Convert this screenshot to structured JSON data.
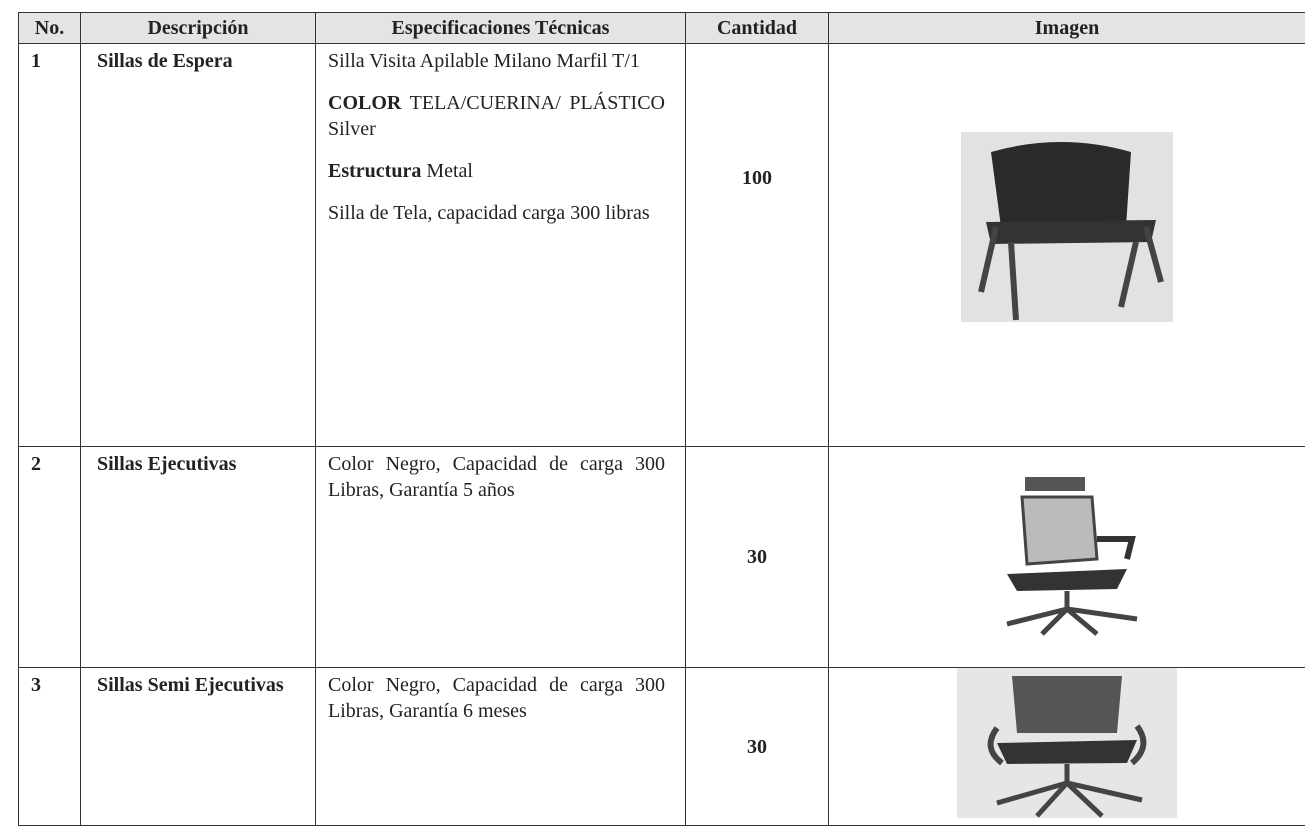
{
  "table": {
    "headers": [
      "No.",
      "Descripción",
      "Especificaciones Técnicas",
      "Cantidad",
      "Imagen"
    ],
    "rows": [
      {
        "no": 1,
        "description": "Sillas de Espera",
        "specs": [
          "Silla Visita Apilable Milano Marfil T/1",
          {
            "label": "COLOR",
            "text": "TELA/CUERINA/ PLÁSTICO Silver"
          },
          {
            "label": "Estructura",
            "text": "Metal"
          },
          "Silla de Tela, capacidad carga 300 libras"
        ],
        "quantity": 100
      },
      {
        "no": 2,
        "description": "Sillas Ejecutivas",
        "specs": [
          "Color Negro, Capacidad de carga 300 Libras, Garantía 5 años"
        ],
        "quantity": 30
      },
      {
        "no": 3,
        "description": "Sillas Semi Ejecutivas",
        "specs": [
          "Color Negro, Capacidad de carga 300 Libras, Garantía 6 meses"
        ],
        "quantity": 30
      }
    ]
  }
}
